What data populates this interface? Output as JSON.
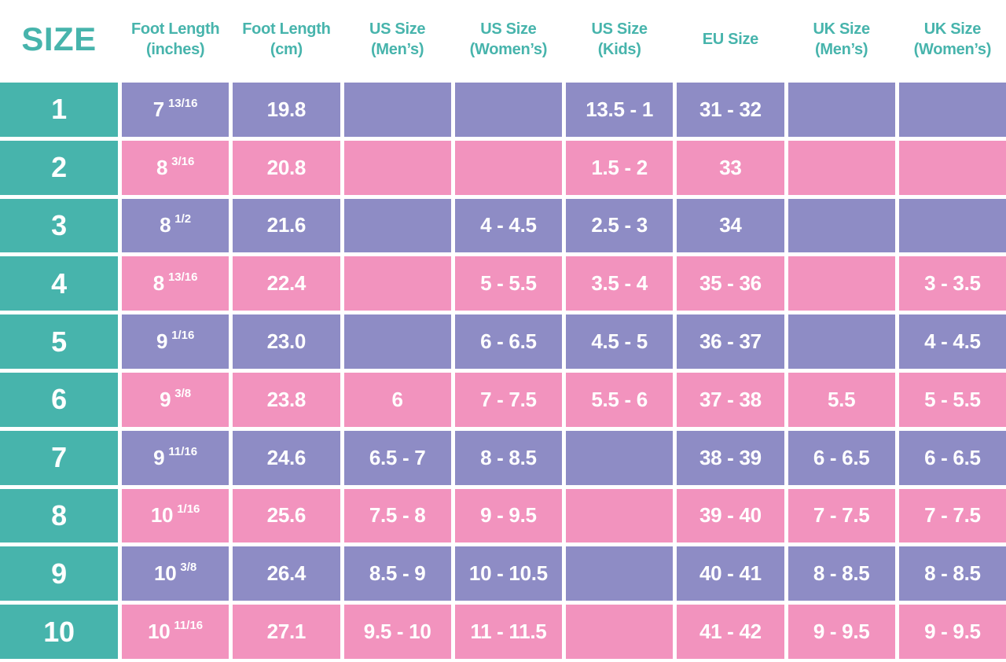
{
  "colors": {
    "teal": "#47B4AC",
    "purple": "#8E8CC5",
    "pink": "#F293BE",
    "cell_text": "#FFFFFF",
    "header_text": "#47B4AC"
  },
  "header": {
    "size_label": "SIZE",
    "columns": [
      {
        "line1": "Foot Length",
        "line2": "(inches)"
      },
      {
        "line1": "Foot Length",
        "line2": "(cm)"
      },
      {
        "line1": "US Size",
        "line2": "(Men’s)"
      },
      {
        "line1": "US Size",
        "line2": "(Women’s)"
      },
      {
        "line1": "US Size",
        "line2": "(Kids)"
      },
      {
        "line1": "EU Size",
        "line2": ""
      },
      {
        "line1": "UK Size",
        "line2": "(Men’s)"
      },
      {
        "line1": "UK Size",
        "line2": "(Women’s)"
      }
    ]
  },
  "rows": [
    {
      "size": "1",
      "inches_whole": "7",
      "inches_frac": "13/16",
      "cm": "19.8",
      "us_mens": "",
      "us_womens": "",
      "us_kids": "13.5 - 1",
      "eu": "31 - 32",
      "uk_mens": "",
      "uk_womens": ""
    },
    {
      "size": "2",
      "inches_whole": "8",
      "inches_frac": "3/16",
      "cm": "20.8",
      "us_mens": "",
      "us_womens": "",
      "us_kids": "1.5 - 2",
      "eu": "33",
      "uk_mens": "",
      "uk_womens": ""
    },
    {
      "size": "3",
      "inches_whole": "8",
      "inches_frac": "1/2",
      "cm": "21.6",
      "us_mens": "",
      "us_womens": "4 - 4.5",
      "us_kids": "2.5 - 3",
      "eu": "34",
      "uk_mens": "",
      "uk_womens": ""
    },
    {
      "size": "4",
      "inches_whole": "8",
      "inches_frac": "13/16",
      "cm": "22.4",
      "us_mens": "",
      "us_womens": "5 - 5.5",
      "us_kids": "3.5 - 4",
      "eu": "35 - 36",
      "uk_mens": "",
      "uk_womens": "3 - 3.5"
    },
    {
      "size": "5",
      "inches_whole": "9",
      "inches_frac": "1/16",
      "cm": "23.0",
      "us_mens": "",
      "us_womens": "6 - 6.5",
      "us_kids": "4.5 - 5",
      "eu": "36 - 37",
      "uk_mens": "",
      "uk_womens": "4 - 4.5"
    },
    {
      "size": "6",
      "inches_whole": "9",
      "inches_frac": "3/8",
      "cm": "23.8",
      "us_mens": "6",
      "us_womens": "7 - 7.5",
      "us_kids": "5.5 - 6",
      "eu": "37 - 38",
      "uk_mens": "5.5",
      "uk_womens": "5 - 5.5"
    },
    {
      "size": "7",
      "inches_whole": "9",
      "inches_frac": "11/16",
      "cm": "24.6",
      "us_mens": "6.5 - 7",
      "us_womens": "8 - 8.5",
      "us_kids": "",
      "eu": "38 - 39",
      "uk_mens": "6 - 6.5",
      "uk_womens": "6 - 6.5"
    },
    {
      "size": "8",
      "inches_whole": "10",
      "inches_frac": "1/16",
      "cm": "25.6",
      "us_mens": "7.5 - 8",
      "us_womens": "9 - 9.5",
      "us_kids": "",
      "eu": "39 - 40",
      "uk_mens": "7 - 7.5",
      "uk_womens": "7 - 7.5"
    },
    {
      "size": "9",
      "inches_whole": "10",
      "inches_frac": "3/8",
      "cm": "26.4",
      "us_mens": "8.5 - 9",
      "us_womens": "10 - 10.5",
      "us_kids": "",
      "eu": "40 - 41",
      "uk_mens": "8 - 8.5",
      "uk_womens": "8 - 8.5"
    },
    {
      "size": "10",
      "inches_whole": "10",
      "inches_frac": "11/16",
      "cm": "27.1",
      "us_mens": "9.5 - 10",
      "us_womens": "11 - 11.5",
      "us_kids": "",
      "eu": "41 - 42",
      "uk_mens": "9 - 9.5",
      "uk_womens": "9 - 9.5"
    }
  ],
  "chart_data": {
    "type": "table",
    "columns": [
      "SIZE",
      "Foot Length (inches)",
      "Foot Length (cm)",
      "US Size (Men’s)",
      "US Size (Women’s)",
      "US Size (Kids)",
      "EU Size",
      "UK Size (Men’s)",
      "UK Size (Women’s)"
    ],
    "rows": [
      [
        "1",
        "7 13/16",
        "19.8",
        "",
        "",
        "13.5 - 1",
        "31 - 32",
        "",
        ""
      ],
      [
        "2",
        "8 3/16",
        "20.8",
        "",
        "",
        "1.5 - 2",
        "33",
        "",
        ""
      ],
      [
        "3",
        "8 1/2",
        "21.6",
        "",
        "4 - 4.5",
        "2.5 - 3",
        "34",
        "",
        ""
      ],
      [
        "4",
        "8 13/16",
        "22.4",
        "",
        "5 - 5.5",
        "3.5 - 4",
        "35 - 36",
        "",
        "3 - 3.5"
      ],
      [
        "5",
        "9 1/16",
        "23.0",
        "",
        "6 - 6.5",
        "4.5 - 5",
        "36 - 37",
        "",
        "4 - 4.5"
      ],
      [
        "6",
        "9 3/8",
        "23.8",
        "6",
        "7 - 7.5",
        "5.5 - 6",
        "37 - 38",
        "5.5",
        "5 - 5.5"
      ],
      [
        "7",
        "9 11/16",
        "24.6",
        "6.5 - 7",
        "8 - 8.5",
        "",
        "38 - 39",
        "6 - 6.5",
        "6 - 6.5"
      ],
      [
        "8",
        "10 1/16",
        "25.6",
        "7.5 - 8",
        "9 - 9.5",
        "",
        "39 - 40",
        "7 - 7.5",
        "7 - 7.5"
      ],
      [
        "9",
        "10 3/8",
        "26.4",
        "8.5 - 9",
        "10 - 10.5",
        "",
        "40 - 41",
        "8 - 8.5",
        "8 - 8.5"
      ],
      [
        "10",
        "10 11/16",
        "27.1",
        "9.5 - 10",
        "11 - 11.5",
        "",
        "41 - 42",
        "9 - 9.5",
        "9 - 9.5"
      ]
    ],
    "row_fill_pattern": [
      "purple",
      "pink",
      "purple",
      "pink",
      "purple",
      "pink",
      "purple",
      "pink",
      "purple",
      "pink"
    ]
  }
}
